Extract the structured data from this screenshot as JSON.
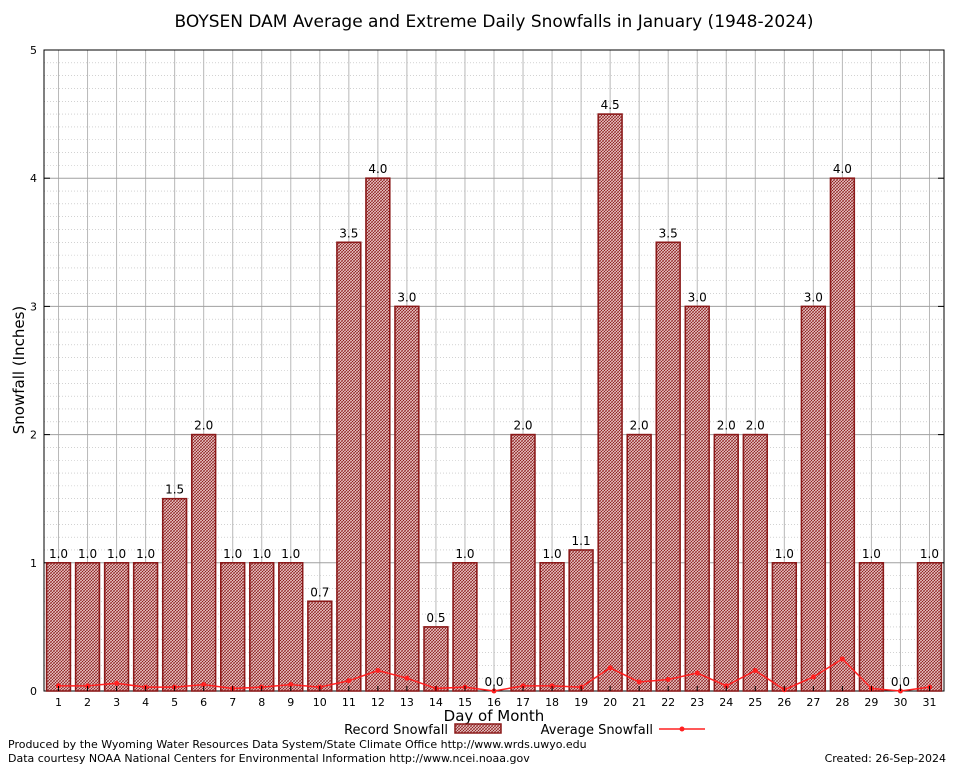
{
  "chart_data": {
    "type": "bar",
    "title": "BOYSEN DAM Average and Extreme Daily Snowfalls in January (1948-2024)",
    "xlabel": "Day of Month",
    "ylabel": "Snowfall (Inches)",
    "ylim": [
      0,
      5
    ],
    "yticks": [
      "0",
      "1",
      "2",
      "3",
      "4",
      "5"
    ],
    "grid": true,
    "categories": [
      "1",
      "2",
      "3",
      "4",
      "5",
      "6",
      "7",
      "8",
      "9",
      "10",
      "11",
      "12",
      "13",
      "14",
      "15",
      "16",
      "17",
      "18",
      "19",
      "20",
      "21",
      "22",
      "23",
      "24",
      "25",
      "26",
      "27",
      "28",
      "29",
      "30",
      "31"
    ],
    "series": [
      {
        "name": "Record Snowfall",
        "type": "bar",
        "color": "#b22222",
        "values": [
          1.0,
          1.0,
          1.0,
          1.0,
          1.5,
          2.0,
          1.0,
          1.0,
          1.0,
          0.7,
          3.5,
          4.0,
          3.0,
          0.5,
          1.0,
          0.0,
          2.0,
          1.0,
          1.1,
          4.5,
          2.0,
          3.5,
          3.0,
          2.0,
          2.0,
          1.0,
          3.0,
          4.0,
          1.0,
          0.0,
          1.0
        ],
        "labels": [
          "1.0",
          "1.0",
          "1.0",
          "1.0",
          "1.5",
          "2.0",
          "1.0",
          "1.0",
          "1.0",
          "0.7",
          "3.5",
          "4.0",
          "3.0",
          "0.5",
          "1.0",
          "0.0",
          "2.0",
          "1.0",
          "1.1",
          "4.5",
          "2.0",
          "3.5",
          "3.0",
          "2.0",
          "2.0",
          "1.0",
          "3.0",
          "4.0",
          "1.0",
          "0.0",
          "1.0"
        ]
      },
      {
        "name": "Average Snowfall",
        "type": "line",
        "color": "#ff2020",
        "values": [
          0.04,
          0.04,
          0.06,
          0.03,
          0.03,
          0.05,
          0.02,
          0.03,
          0.05,
          0.03,
          0.08,
          0.16,
          0.1,
          0.02,
          0.03,
          0.0,
          0.04,
          0.04,
          0.03,
          0.18,
          0.07,
          0.09,
          0.14,
          0.04,
          0.16,
          0.01,
          0.11,
          0.25,
          0.02,
          0.0,
          0.03
        ]
      }
    ],
    "legend": "bottom-center"
  },
  "footer": {
    "line1": "Produced by the Wyoming Water Resources Data System/State Climate Office http://www.wrds.uwyo.edu",
    "line2": "Data courtesy NOAA National Centers for Environmental Information http://www.ncei.noaa.gov",
    "created": "Created:  26-Sep-2024"
  }
}
